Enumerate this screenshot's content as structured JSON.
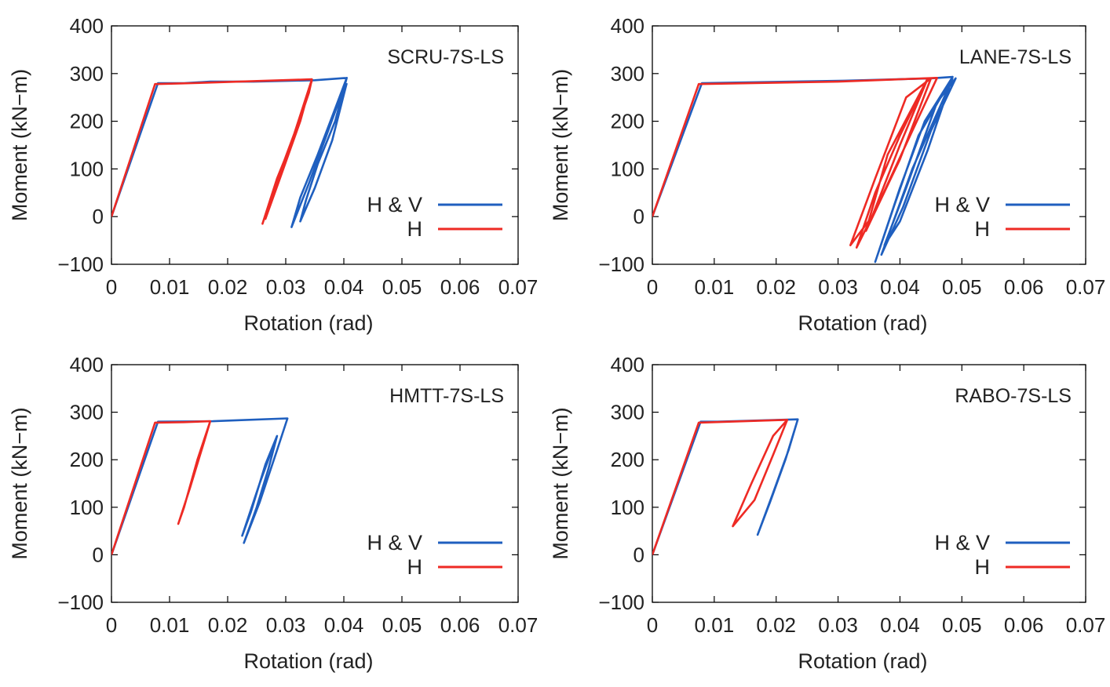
{
  "chart_data": [
    {
      "type": "line",
      "panel_label": "SCRU-7S-LS",
      "xlabel": "Rotation (rad)",
      "ylabel": "Moment (kN−m)",
      "xlim": [
        0,
        0.07
      ],
      "ylim": [
        -100,
        400
      ],
      "x_ticks": [
        "0",
        "0.01",
        "0.02",
        "0.03",
        "0.04",
        "0.05",
        "0.06",
        "0.07"
      ],
      "y_ticks": [
        "−100",
        "0",
        "100",
        "200",
        "300",
        "400"
      ],
      "grid": false,
      "legend_position": "bottom-right",
      "series": [
        {
          "name": "H & V",
          "color": "#1f5fbf",
          "points": [
            [
              0,
              0
            ],
            [
              0.008,
              280
            ],
            [
              0.0125,
              280
            ],
            [
              0.017,
              283
            ],
            [
              0.0245,
              283
            ],
            [
              0.035,
              286
            ],
            [
              0.0405,
              291
            ],
            [
              0.038,
              210
            ],
            [
              0.0355,
              130
            ],
            [
              0.0325,
              40
            ],
            [
              0.031,
              -22
            ],
            [
              0.034,
              70
            ],
            [
              0.037,
              170
            ],
            [
              0.04,
              270
            ],
            [
              0.0405,
              291
            ],
            [
              0.0385,
              200
            ],
            [
              0.0355,
              110
            ],
            [
              0.0335,
              35
            ],
            [
              0.0325,
              -10
            ],
            [
              0.035,
              60
            ],
            [
              0.038,
              160
            ],
            [
              0.0405,
              280
            ]
          ]
        },
        {
          "name": "H",
          "color": "#ee2a24",
          "points": [
            [
              0,
              0
            ],
            [
              0.0075,
              278
            ],
            [
              0.011,
              279
            ],
            [
              0.014,
              280
            ],
            [
              0.0345,
              288
            ],
            [
              0.0315,
              175
            ],
            [
              0.028,
              60
            ],
            [
              0.026,
              -15
            ],
            [
              0.0285,
              80
            ],
            [
              0.0315,
              170
            ],
            [
              0.034,
              260
            ],
            [
              0.0345,
              288
            ],
            [
              0.0325,
              200
            ],
            [
              0.029,
              80
            ],
            [
              0.0265,
              -5
            ],
            [
              0.03,
              120
            ],
            [
              0.0345,
              285
            ]
          ]
        }
      ]
    },
    {
      "type": "line",
      "panel_label": "LANE-7S-LS",
      "xlabel": "Rotation (rad)",
      "ylabel": "Moment (kN−m)",
      "xlim": [
        0,
        0.07
      ],
      "ylim": [
        -100,
        400
      ],
      "x_ticks": [
        "0",
        "0.01",
        "0.02",
        "0.03",
        "0.04",
        "0.05",
        "0.06",
        "0.07"
      ],
      "y_ticks": [
        "−100",
        "0",
        "100",
        "200",
        "300",
        "400"
      ],
      "grid": false,
      "legend_position": "bottom-right",
      "series": [
        {
          "name": "H & V",
          "color": "#1f5fbf",
          "points": [
            [
              0,
              0
            ],
            [
              0.008,
              280
            ],
            [
              0.031,
              285
            ],
            [
              0.045,
              290
            ],
            [
              0.0485,
              293
            ],
            [
              0.044,
              200
            ],
            [
              0.04,
              60
            ],
            [
              0.036,
              -95
            ],
            [
              0.039,
              20
            ],
            [
              0.043,
              170
            ],
            [
              0.0485,
              293
            ],
            [
              0.0445,
              140
            ],
            [
              0.04,
              -10
            ],
            [
              0.0375,
              -60
            ],
            [
              0.041,
              60
            ],
            [
              0.046,
              240
            ],
            [
              0.049,
              290
            ],
            [
              0.045,
              180
            ],
            [
              0.0405,
              20
            ],
            [
              0.037,
              -80
            ],
            [
              0.042,
              100
            ],
            [
              0.0485,
              290
            ]
          ]
        },
        {
          "name": "H",
          "color": "#ee2a24",
          "points": [
            [
              0,
              0
            ],
            [
              0.0075,
              278
            ],
            [
              0.03,
              283
            ],
            [
              0.046,
              291
            ],
            [
              0.042,
              180
            ],
            [
              0.037,
              40
            ],
            [
              0.033,
              -65
            ],
            [
              0.036,
              50
            ],
            [
              0.04,
              170
            ],
            [
              0.0445,
              290
            ],
            [
              0.04,
              150
            ],
            [
              0.0355,
              0
            ],
            [
              0.032,
              -60
            ],
            [
              0.036,
              80
            ],
            [
              0.041,
              250
            ],
            [
              0.045,
              290
            ],
            [
              0.04,
              120
            ],
            [
              0.0345,
              -30
            ],
            [
              0.038,
              130
            ],
            [
              0.0445,
              290
            ]
          ]
        }
      ]
    },
    {
      "type": "line",
      "panel_label": "HMTT-7S-LS",
      "xlabel": "Rotation (rad)",
      "ylabel": "Moment (kN−m)",
      "xlim": [
        0,
        0.07
      ],
      "ylim": [
        -100,
        400
      ],
      "x_ticks": [
        "0",
        "0.01",
        "0.02",
        "0.03",
        "0.04",
        "0.05",
        "0.06",
        "0.07"
      ],
      "y_ticks": [
        "−100",
        "0",
        "100",
        "200",
        "300",
        "400"
      ],
      "grid": false,
      "legend_position": "bottom-right",
      "series": [
        {
          "name": "H & V",
          "color": "#1f5fbf",
          "points": [
            [
              0,
              0
            ],
            [
              0.008,
              280
            ],
            [
              0.0175,
              281
            ],
            [
              0.0215,
              283
            ],
            [
              0.0303,
              287
            ],
            [
              0.0285,
              220
            ],
            [
              0.0255,
              110
            ],
            [
              0.0228,
              25
            ],
            [
              0.025,
              100
            ],
            [
              0.027,
              180
            ],
            [
              0.0285,
              250
            ],
            [
              0.0265,
              190
            ],
            [
              0.024,
              90
            ],
            [
              0.0225,
              40
            ],
            [
              0.0255,
              150
            ],
            [
              0.0285,
              250
            ]
          ]
        },
        {
          "name": "H",
          "color": "#ee2a24",
          "points": [
            [
              0,
              0
            ],
            [
              0.0075,
              278
            ],
            [
              0.0125,
              279
            ],
            [
              0.017,
              281
            ],
            [
              0.0148,
              200
            ],
            [
              0.0125,
              100
            ],
            [
              0.0115,
              65
            ],
            [
              0.0135,
              140
            ],
            [
              0.016,
              240
            ],
            [
              0.017,
              281
            ]
          ]
        }
      ]
    },
    {
      "type": "line",
      "panel_label": "RABO-7S-LS",
      "xlabel": "Rotation (rad)",
      "ylabel": "Moment (kN−m)",
      "xlim": [
        0,
        0.07
      ],
      "ylim": [
        -100,
        400
      ],
      "x_ticks": [
        "0",
        "0.01",
        "0.02",
        "0.03",
        "0.04",
        "0.05",
        "0.06",
        "0.07"
      ],
      "y_ticks": [
        "−100",
        "0",
        "100",
        "200",
        "300",
        "400"
      ],
      "grid": false,
      "legend_position": "bottom-right",
      "series": [
        {
          "name": "H & V",
          "color": "#1f5fbf",
          "points": [
            [
              0,
              0
            ],
            [
              0.0078,
              280
            ],
            [
              0.0105,
              280
            ],
            [
              0.0235,
              285
            ],
            [
              0.0215,
              200
            ],
            [
              0.019,
              110
            ],
            [
              0.017,
              42
            ],
            [
              0.0195,
              130
            ],
            [
              0.022,
              220
            ],
            [
              0.0235,
              285
            ]
          ]
        },
        {
          "name": "H",
          "color": "#ee2a24",
          "points": [
            [
              0,
              0
            ],
            [
              0.0075,
              278
            ],
            [
              0.0218,
              284
            ],
            [
              0.0195,
              210
            ],
            [
              0.0165,
              115
            ],
            [
              0.013,
              60
            ],
            [
              0.016,
              150
            ],
            [
              0.0195,
              250
            ],
            [
              0.0218,
              284
            ]
          ]
        }
      ]
    }
  ]
}
